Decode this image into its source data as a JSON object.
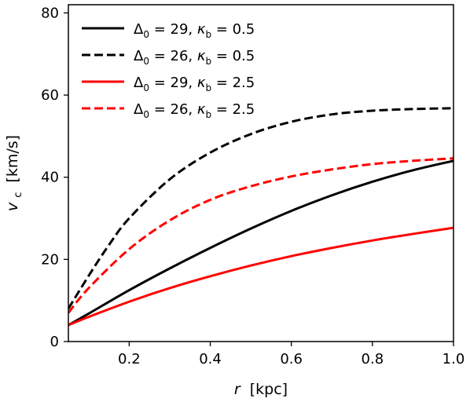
{
  "chart_data": {
    "type": "line",
    "xlabel": {
      "var": "r",
      "unit": "[kpc]"
    },
    "ylabel": {
      "var": "v",
      "sub": "c",
      "unit": "[km/s]"
    },
    "xlim": [
      0.05,
      1.0
    ],
    "ylim": [
      0,
      82
    ],
    "xticks": [
      0.2,
      0.4,
      0.6,
      0.8,
      1.0
    ],
    "xtick_labels": [
      "0.2",
      "0.4",
      "0.6",
      "0.8",
      "1.0"
    ],
    "yticks": [
      0,
      20,
      40,
      60,
      80
    ],
    "ytick_labels": [
      "0",
      "20",
      "40",
      "60",
      "80"
    ],
    "grid": false,
    "legend_position": "top-left",
    "series": [
      {
        "name": "Δ0 = 29, κb = 0.5",
        "delta": "29",
        "kappa": "0.5",
        "color": "#000000",
        "dash": "solid",
        "x": [
          0.05,
          0.1,
          0.2,
          0.3,
          0.4,
          0.5,
          0.6,
          0.7,
          0.8,
          0.9,
          1.0
        ],
        "y": [
          4.0,
          6.8,
          12.5,
          17.8,
          22.8,
          27.5,
          31.8,
          35.6,
          38.9,
          41.7,
          44.0
        ]
      },
      {
        "name": "Δ0 = 26, κb = 0.5",
        "delta": "26",
        "kappa": "0.5",
        "color": "#000000",
        "dash": "dashed",
        "x": [
          0.05,
          0.1,
          0.15,
          0.2,
          0.3,
          0.4,
          0.5,
          0.6,
          0.7,
          0.8,
          0.9,
          1.0
        ],
        "y": [
          8.0,
          16.0,
          23.5,
          30.0,
          39.5,
          46.0,
          50.5,
          53.5,
          55.3,
          56.2,
          56.6,
          56.8
        ]
      },
      {
        "name": "Δ0 = 29, κb = 2.5",
        "delta": "29",
        "kappa": "2.5",
        "color": "#ff0000",
        "dash": "solid",
        "x": [
          0.05,
          0.1,
          0.2,
          0.3,
          0.4,
          0.5,
          0.6,
          0.7,
          0.8,
          0.9,
          1.0
        ],
        "y": [
          4.0,
          6.0,
          9.7,
          13.0,
          15.9,
          18.5,
          20.8,
          22.8,
          24.6,
          26.2,
          27.7
        ]
      },
      {
        "name": "Δ0 = 26, κb = 2.5",
        "delta": "26",
        "kappa": "2.5",
        "color": "#ff0000",
        "dash": "dashed",
        "x": [
          0.05,
          0.1,
          0.2,
          0.3,
          0.4,
          0.5,
          0.6,
          0.7,
          0.8,
          0.9,
          1.0
        ],
        "y": [
          7.0,
          13.0,
          22.5,
          29.5,
          34.5,
          37.8,
          40.2,
          41.9,
          43.2,
          44.0,
          44.6
        ]
      }
    ]
  }
}
